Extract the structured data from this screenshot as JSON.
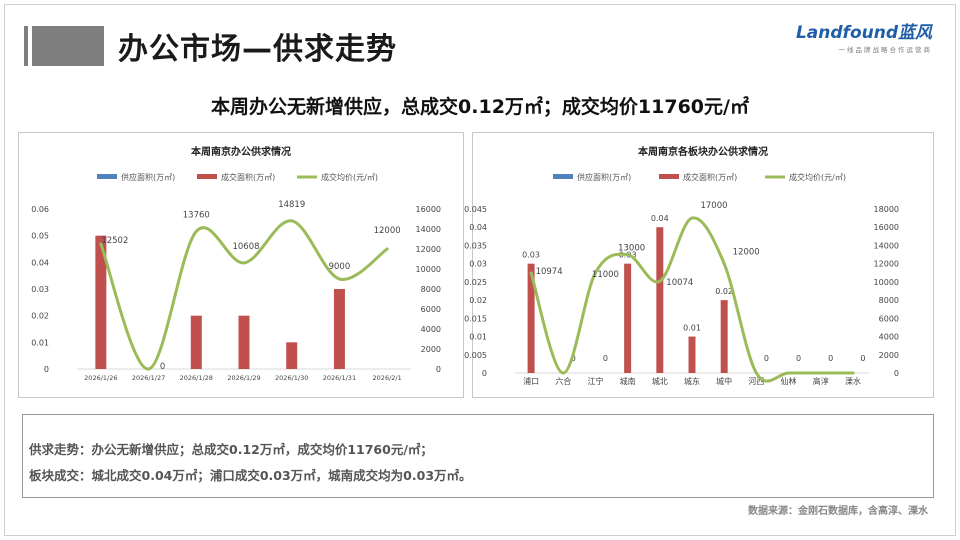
{
  "header": {
    "title": "办公市场—供求走势",
    "logo_text": "Landfound蓝风",
    "logo_sub": "一线品牌战略合作运营商"
  },
  "headline": "本周办公无新增供应，总成交0.12万㎡；成交均价11760元/㎡",
  "chart_data": [
    {
      "type": "bar",
      "title": "本周南京办公供求情况",
      "categories": [
        "2026/1/26",
        "2026/1/27",
        "2026/1/28",
        "2026/1/29",
        "2026/1/30",
        "2026/1/31",
        "2026/2/1"
      ],
      "series": [
        {
          "name": "供应面积(万㎡)",
          "type": "bar",
          "axis": "left",
          "color": "#4f81bd",
          "values": [
            0,
            0,
            0,
            0,
            0,
            0,
            0
          ]
        },
        {
          "name": "成交面积(万㎡)",
          "type": "bar",
          "axis": "left",
          "color": "#c0504d",
          "values": [
            0.05,
            0,
            0.02,
            0.02,
            0.01,
            0.03,
            0
          ]
        },
        {
          "name": "成交均价(元/㎡)",
          "type": "line",
          "axis": "right",
          "color": "#9bbb59",
          "smooth": true,
          "values": [
            12502,
            0,
            13760,
            10608,
            14819,
            9000,
            12000
          ],
          "labels": [
            "12502",
            "0",
            "13760",
            "10608",
            "14819",
            "9000",
            "12000"
          ]
        }
      ],
      "y_left": {
        "min": 0,
        "max": 0.06,
        "ticks": [
          "0",
          "0.01",
          "0.02",
          "0.03",
          "0.04",
          "0.05",
          "0.06"
        ]
      },
      "y_right": {
        "min": 0,
        "max": 16000,
        "ticks": [
          "0",
          "2000",
          "4000",
          "6000",
          "8000",
          "10000",
          "12000",
          "14000",
          "16000"
        ]
      },
      "legend": "top",
      "grid": false
    },
    {
      "type": "bar",
      "title": "本周南京各板块办公供求情况",
      "categories": [
        "浦口",
        "六合",
        "江宁",
        "城南",
        "城北",
        "城东",
        "城中",
        "河西",
        "仙林",
        "高淳",
        "溧水"
      ],
      "series": [
        {
          "name": "供应面积(万㎡)",
          "type": "bar",
          "axis": "left",
          "color": "#4f81bd",
          "values": [
            0,
            0,
            0,
            0,
            0,
            0,
            0,
            0,
            0,
            0,
            0
          ]
        },
        {
          "name": "成交面积(万㎡)",
          "type": "bar",
          "axis": "left",
          "color": "#c0504d",
          "values": [
            0.03,
            0,
            0,
            0.03,
            0.04,
            0.01,
            0.02,
            0,
            0,
            0,
            0
          ],
          "labels": [
            "0.03",
            "0",
            "0",
            "0.03",
            "0.04",
            "0.01",
            "0.02",
            "0",
            "0",
            "0",
            "0"
          ]
        },
        {
          "name": "成交均价(元/㎡)",
          "type": "line",
          "axis": "right",
          "color": "#9bbb59",
          "smooth": true,
          "values": [
            10974,
            0,
            11000,
            13000,
            10074,
            17000,
            12000,
            0,
            0,
            0,
            0
          ],
          "labels": [
            "10974",
            "",
            "11000",
            "13000",
            "10074",
            "17000",
            "12000",
            "",
            "",
            "",
            ""
          ]
        }
      ],
      "y_left": {
        "min": 0,
        "max": 0.045,
        "ticks": [
          "0",
          "0.005",
          "0.01",
          "0.015",
          "0.02",
          "0.025",
          "0.03",
          "0.035",
          "0.04",
          "0.045"
        ]
      },
      "y_right": {
        "min": 0,
        "max": 18000,
        "ticks": [
          "0",
          "2000",
          "4000",
          "6000",
          "8000",
          "10000",
          "12000",
          "14000",
          "16000",
          "18000"
        ]
      },
      "legend": "top",
      "grid": false
    }
  ],
  "summary": {
    "line1": "供求走势：办公无新增供应；总成交0.12万㎡，成交均价11760元/㎡；",
    "line2": "板块成交：城北成交0.04万㎡；浦口成交0.03万㎡，城南成交均为0.03万㎡。"
  },
  "source": "数据来源：金刚石数据库，含高淳、溧水"
}
